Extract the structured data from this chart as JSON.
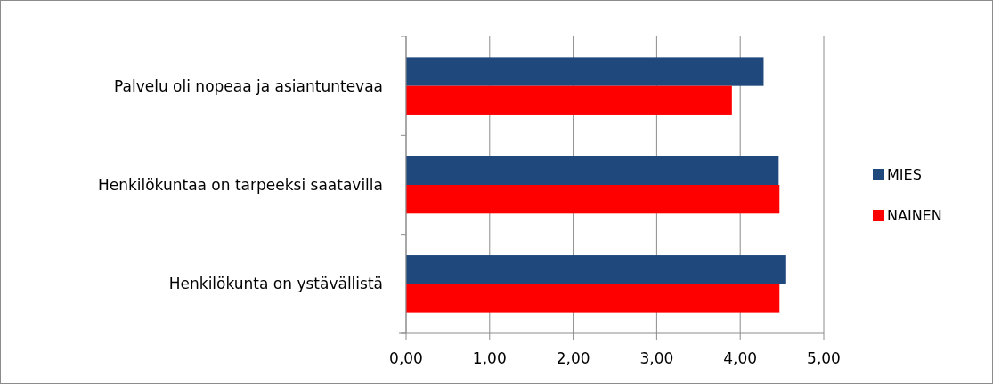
{
  "chart_data": {
    "type": "bar",
    "orientation": "horizontal",
    "categories": [
      "Palvelu oli nopeaa ja asiantuntevaa",
      "Henkilökuntaa on tarpeeksi saatavilla",
      "Henkilökunta on ystävällistä"
    ],
    "series": [
      {
        "name": "MIES",
        "color": "#1f497d",
        "values": [
          4.28,
          4.46,
          4.55
        ]
      },
      {
        "name": "NAINEN",
        "color": "#ff0000",
        "values": [
          3.9,
          4.47,
          4.47
        ]
      }
    ],
    "xlim": [
      0,
      5
    ],
    "xticks": [
      {
        "value": 0,
        "label": "0,00"
      },
      {
        "value": 1,
        "label": "1,00"
      },
      {
        "value": 2,
        "label": "2,00"
      },
      {
        "value": 3,
        "label": "3,00"
      },
      {
        "value": 4,
        "label": "4,00"
      },
      {
        "value": 5,
        "label": "5,00"
      }
    ],
    "grid": "x",
    "legend": "right"
  }
}
